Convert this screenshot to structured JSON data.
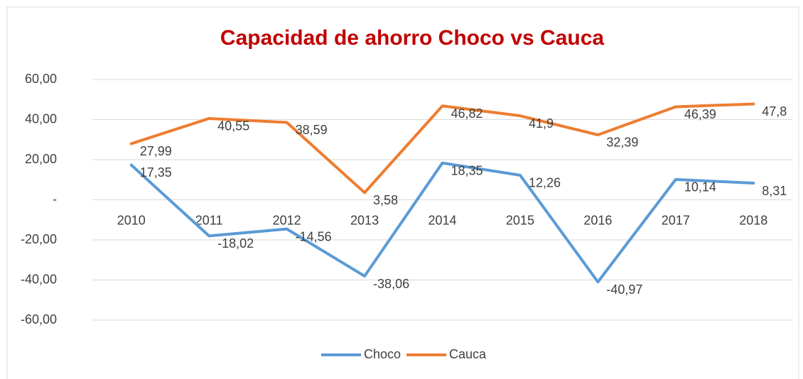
{
  "chart_data": {
    "type": "line",
    "title": "Capacidad de ahorro Choco vs Cauca",
    "categories": [
      "2010",
      "2011",
      "2012",
      "2013",
      "2014",
      "2015",
      "2016",
      "2017",
      "2018"
    ],
    "series": [
      {
        "name": "Choco",
        "color": "#5b9bd5",
        "values": [
          17.35,
          -18.02,
          -14.56,
          -38.06,
          18.35,
          12.26,
          -40.97,
          10.14,
          8.31
        ],
        "value_labels": [
          "17,35",
          "-18,02",
          "-14,56",
          "-38,06",
          "18,35",
          "12,26",
          "-40,97",
          "10,14",
          "8,31"
        ]
      },
      {
        "name": "Cauca",
        "color": "#ed7d31",
        "values": [
          27.99,
          40.55,
          38.59,
          3.58,
          46.82,
          41.9,
          32.39,
          46.39,
          47.8
        ],
        "value_labels": [
          "27,99",
          "40,55",
          "38,59",
          "3,58",
          "46,82",
          "41,9",
          "32,39",
          "46,39",
          "47,8"
        ]
      }
    ],
    "ylim": [
      -60,
      60
    ],
    "yticks": [
      {
        "value": -60,
        "label": "-60,00"
      },
      {
        "value": -40,
        "label": "-40,00"
      },
      {
        "value": -20,
        "label": "-20,00"
      },
      {
        "value": 0,
        "label": "-"
      },
      {
        "value": 20,
        "label": "20,00"
      },
      {
        "value": 40,
        "label": "40,00"
      },
      {
        "value": 60,
        "label": "60,00"
      }
    ],
    "grid": true,
    "legend": "bottom"
  }
}
